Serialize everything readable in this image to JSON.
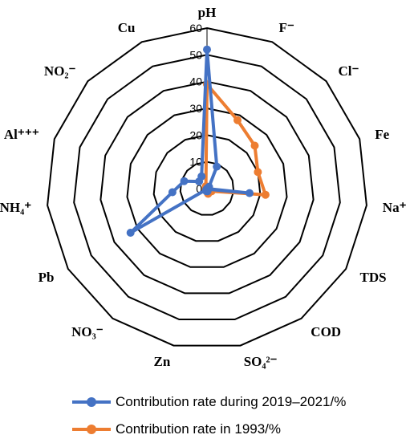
{
  "chart_data": {
    "type": "radar",
    "axes": [
      "pH",
      "F⁻",
      "Cl⁻",
      "Fe",
      "Na⁺",
      "TDS",
      "COD",
      "SO₄²⁻",
      "Zn",
      "NO₃⁻",
      "Pb",
      "NH₄⁺",
      "Al⁺⁺⁺",
      "NO₂⁻",
      "Cu"
    ],
    "r_ticks": [
      "0",
      "10",
      "20",
      "30",
      "40",
      "50",
      "60"
    ],
    "rlim": [
      0,
      60
    ],
    "grid": true,
    "legend_position": "bottom",
    "series": [
      {
        "name": "Contribution rate during 2019–2021/%",
        "color": "#4472C4",
        "values": [
          52,
          9,
          1,
          0,
          16,
          0.5,
          0,
          1,
          1,
          0.5,
          33,
          13,
          9,
          4,
          5
        ]
      },
      {
        "name": "Contribution rate in 1993/%",
        "color": "#ED7D31",
        "values": [
          39,
          28,
          24,
          20,
          22,
          2,
          1,
          2,
          1,
          0.5,
          0.5,
          0.5,
          0.5,
          0.5,
          1
        ]
      }
    ]
  }
}
